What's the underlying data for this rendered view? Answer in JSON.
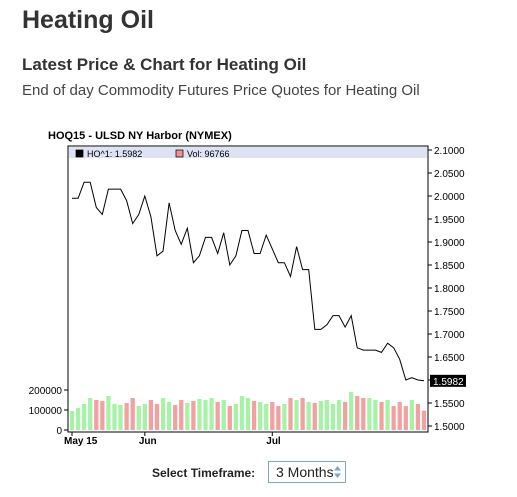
{
  "page": {
    "title": "Heating Oil",
    "subtitle": "Latest Price & Chart for Heating Oil",
    "description": "End of day Commodity Futures Price Quotes for Heating Oil"
  },
  "chart_data": {
    "type": "line",
    "title": "HOQ15 - ULSD NY Harbor (NYMEX)",
    "legend": [
      {
        "label": "HO^1: 1.5982",
        "color": "#000000"
      },
      {
        "label": "Vol: 96766",
        "color": "#f09090"
      }
    ],
    "last_value_label": "1.5982",
    "price_axis": {
      "ticks": [
        "2.1000",
        "2.0500",
        "2.0000",
        "1.9500",
        "1.9000",
        "1.8500",
        "1.8000",
        "1.7500",
        "1.7000",
        "1.6500",
        "1.6000",
        "1.5500",
        "1.5000"
      ],
      "min": 1.5,
      "max": 2.1
    },
    "volume_axis": {
      "ticks": [
        "200000",
        "100000",
        "0"
      ],
      "max": 200000
    },
    "x_ticks": [
      {
        "label": "May 15",
        "index": 0
      },
      {
        "label": "Jun",
        "index": 12
      },
      {
        "label": "Jul",
        "index": 33
      }
    ],
    "price_series": [
      1.995,
      1.995,
      2.03,
      2.03,
      1.975,
      1.96,
      2.015,
      2.015,
      2.015,
      1.99,
      1.94,
      1.96,
      2.0,
      1.955,
      1.87,
      1.88,
      1.985,
      1.925,
      1.895,
      1.93,
      1.855,
      1.87,
      1.91,
      1.91,
      1.875,
      1.92,
      1.85,
      1.87,
      1.925,
      1.925,
      1.875,
      1.875,
      1.915,
      1.885,
      1.855,
      1.855,
      1.825,
      1.89,
      1.84,
      1.84,
      1.71,
      1.71,
      1.72,
      1.74,
      1.74,
      1.715,
      1.74,
      1.67,
      1.665,
      1.665,
      1.665,
      1.66,
      1.68,
      1.67,
      1.645,
      1.6,
      1.605,
      1.6,
      1.5982
    ],
    "volume_series": [
      95000,
      110000,
      130000,
      160000,
      150000,
      145000,
      170000,
      130000,
      125000,
      135000,
      160000,
      120000,
      130000,
      150000,
      130000,
      160000,
      140000,
      125000,
      150000,
      135000,
      145000,
      155000,
      150000,
      160000,
      140000,
      150000,
      120000,
      130000,
      170000,
      160000,
      145000,
      140000,
      130000,
      140000,
      120000,
      130000,
      160000,
      150000,
      160000,
      140000,
      135000,
      145000,
      150000,
      130000,
      150000,
      140000,
      190000,
      170000,
      160000,
      160000,
      150000,
      140000,
      150000,
      120000,
      140000,
      120000,
      150000,
      130000,
      96766
    ],
    "volume_colors_up": "#a6f2a6",
    "volume_colors_down": "#f2a0a0"
  },
  "timeframe": {
    "label": "Select Timeframe:",
    "selected": "3 Months"
  }
}
